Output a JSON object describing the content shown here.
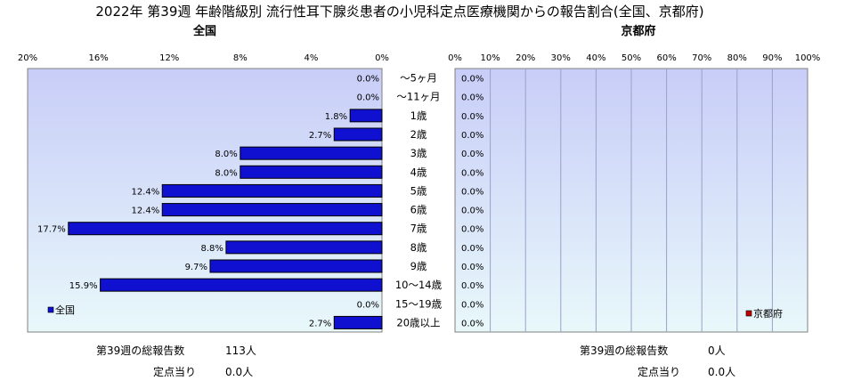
{
  "title": "2022年 第39週 年齢階級別 流行性耳下腺炎患者の小児科定点医療機関からの報告割合(全国、京都府)",
  "colors": {
    "plot_bg_light": "#e8f8fa",
    "plot_bg_mid": "#c8cdf8",
    "bar_national": "#1010d0",
    "bar_kyoto": "#c00000",
    "grid": "#9aa0c8"
  },
  "chart_data": [
    {
      "type": "bar",
      "orientation": "horizontal",
      "direction": "right-to-left",
      "title": "全国",
      "categories": [
        "～5ヶ月",
        "～11ヶ月",
        "1歳",
        "2歳",
        "3歳",
        "4歳",
        "5歳",
        "6歳",
        "7歳",
        "8歳",
        "9歳",
        "10～14歳",
        "15～19歳",
        "20歳以上"
      ],
      "series": [
        {
          "name": "全国",
          "values": [
            0.0,
            0.0,
            1.8,
            2.7,
            8.0,
            8.0,
            12.4,
            12.4,
            17.7,
            8.8,
            9.7,
            15.9,
            0.0,
            2.7
          ],
          "labels": [
            "0.0%",
            "0.0%",
            "1.8%",
            "2.7%",
            "8.0%",
            "8.0%",
            "12.4%",
            "12.4%",
            "17.7%",
            "8.8%",
            "9.7%",
            "15.9%",
            "0.0%",
            "2.7%"
          ]
        }
      ],
      "xlim": [
        0,
        20
      ],
      "xticks": [
        20,
        16,
        12,
        8,
        4,
        0
      ],
      "xtick_labels": [
        "20%",
        "16%",
        "12%",
        "8%",
        "4%",
        "0%"
      ],
      "grid": false,
      "legend": "bottom-left",
      "summary": {
        "total_label": "第39週の総報告数",
        "total_value": "113人",
        "per_site_label": "定点当り",
        "per_site_value": "0.0人"
      }
    },
    {
      "type": "bar",
      "orientation": "horizontal",
      "direction": "left-to-right",
      "title": "京都府",
      "categories": [
        "～5ヶ月",
        "～11ヶ月",
        "1歳",
        "2歳",
        "3歳",
        "4歳",
        "5歳",
        "6歳",
        "7歳",
        "8歳",
        "9歳",
        "10～14歳",
        "15～19歳",
        "20歳以上"
      ],
      "series": [
        {
          "name": "京都府",
          "values": [
            0.0,
            0.0,
            0.0,
            0.0,
            0.0,
            0.0,
            0.0,
            0.0,
            0.0,
            0.0,
            0.0,
            0.0,
            0.0,
            0.0
          ],
          "labels": [
            "0.0%",
            "0.0%",
            "0.0%",
            "0.0%",
            "0.0%",
            "0.0%",
            "0.0%",
            "0.0%",
            "0.0%",
            "0.0%",
            "0.0%",
            "0.0%",
            "0.0%",
            "0.0%"
          ]
        }
      ],
      "xlim": [
        0,
        100
      ],
      "xticks": [
        0,
        10,
        20,
        30,
        40,
        50,
        60,
        70,
        80,
        90,
        100
      ],
      "xtick_labels": [
        "0%",
        "10%",
        "20%",
        "30%",
        "40%",
        "50%",
        "60%",
        "70%",
        "80%",
        "90%",
        "100%"
      ],
      "grid": true,
      "legend": "bottom-right",
      "summary": {
        "total_label": "第39週の総報告数",
        "total_value": "0人",
        "per_site_label": "定点当り",
        "per_site_value": "0.0人"
      }
    }
  ]
}
